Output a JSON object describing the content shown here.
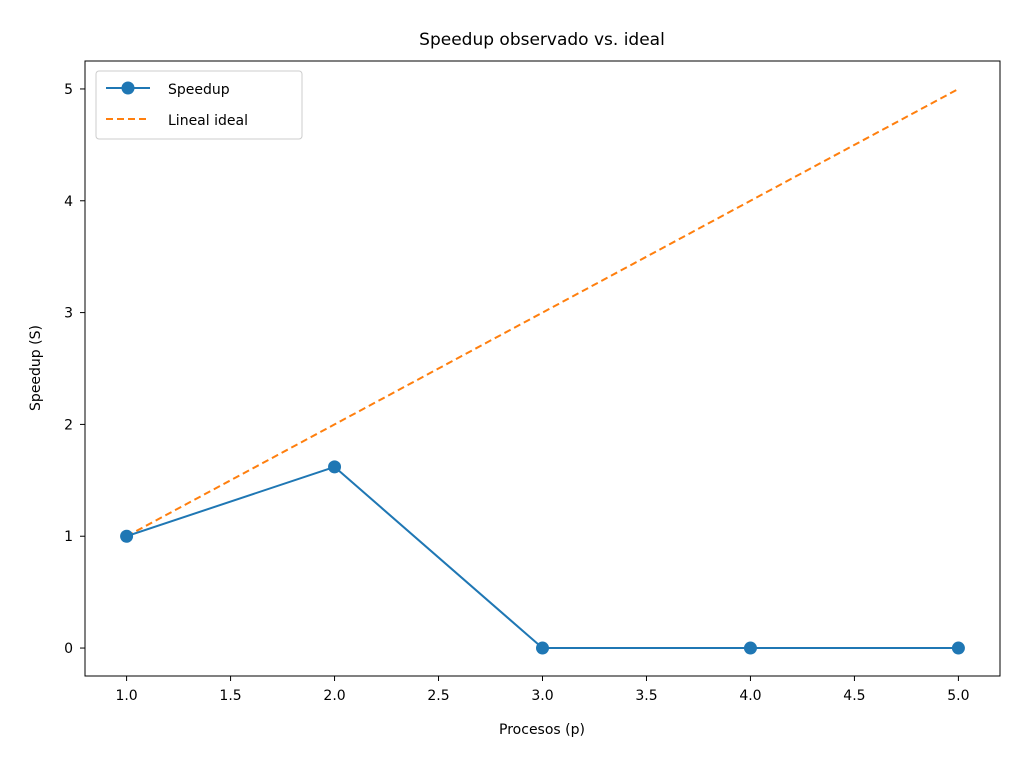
{
  "chart_data": {
    "type": "line",
    "title": "Speedup observado vs. ideal",
    "xlabel": "Procesos (p)",
    "ylabel": "Speedup (S)",
    "xlim": [
      0.8,
      5.2
    ],
    "ylim": [
      -0.25,
      5.25
    ],
    "x_ticks": [
      "1.0",
      "1.5",
      "2.0",
      "2.5",
      "3.0",
      "3.5",
      "4.0",
      "4.5",
      "5.0"
    ],
    "y_ticks": [
      "0",
      "1",
      "2",
      "3",
      "4",
      "5"
    ],
    "grid": false,
    "legend_position": "top-left",
    "series": [
      {
        "name": "Speedup",
        "style": "solid-with-markers",
        "color": "#1f77b4",
        "x": [
          1,
          2,
          3,
          4,
          5
        ],
        "y": [
          1.0,
          1.62,
          0.0,
          0.0,
          0.0
        ]
      },
      {
        "name": "Lineal ideal",
        "style": "dashed",
        "color": "#ff7f0e",
        "x": [
          1,
          2,
          3,
          4,
          5
        ],
        "y": [
          1,
          2,
          3,
          4,
          5
        ]
      }
    ]
  }
}
